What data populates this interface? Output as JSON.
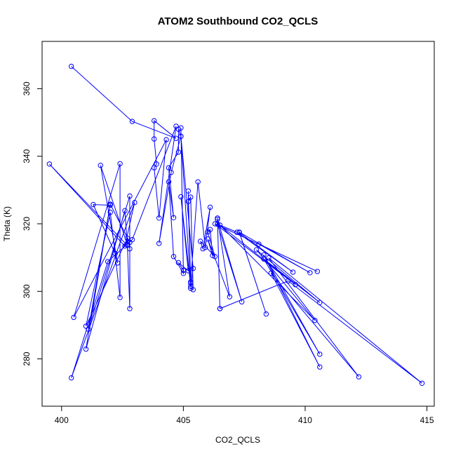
{
  "chart_data": {
    "type": "scatter",
    "title": "ATOM2 Southbound CO2_QCLS",
    "xlabel": "CO2_QCLS",
    "ylabel": "Theta (K)",
    "xlim": [
      399.2,
      415.3
    ],
    "ylim": [
      266,
      374
    ],
    "x_ticks": [
      400,
      405,
      410,
      415
    ],
    "y_ticks": [
      280,
      300,
      320,
      340,
      360
    ],
    "grid": false,
    "marker": "open-circle",
    "connected": true,
    "color": "#0000ff",
    "series": [
      {
        "points": [
          [
            400.4,
            366.6
          ],
          [
            402.9,
            350.3
          ],
          [
            404.7,
            345.3
          ],
          [
            403.8,
            350.5
          ],
          [
            403.8,
            345.1
          ],
          [
            403.9,
            337.7
          ],
          [
            403.8,
            336.6
          ],
          [
            404.0,
            321.7
          ],
          [
            404.3,
            344.9
          ],
          [
            400.5,
            292.3
          ],
          [
            402.4,
            337.8
          ],
          [
            402.4,
            298.2
          ],
          [
            402.0,
            323.4
          ],
          [
            401.0,
            289.7
          ],
          [
            402.7,
            315.7
          ],
          [
            402.8,
            312.6
          ],
          [
            402.8,
            328.2
          ],
          [
            401.1,
            288.8
          ],
          [
            402.0,
            325.8
          ],
          [
            402.0,
            325.5
          ],
          [
            401.3,
            325.7
          ],
          [
            402.2,
            311.2
          ],
          [
            402.3,
            308.4
          ],
          [
            401.6,
            337.3
          ],
          [
            402.7,
            313.9
          ],
          [
            402.8,
            294.9
          ],
          [
            402.8,
            314.5
          ],
          [
            402.0,
            325.8
          ],
          [
            401.0,
            282.9
          ],
          [
            402.6,
            323.9
          ],
          [
            402.7,
            313.6
          ],
          [
            399.5,
            337.7
          ],
          [
            402.6,
            313.4
          ],
          [
            403.0,
            326.3
          ],
          [
            400.4,
            274.4
          ],
          [
            401.9,
            308.8
          ],
          [
            402.9,
            315.3
          ],
          [
            404.7,
            348.9
          ],
          [
            404.0,
            314.2
          ],
          [
            404.5,
            335.2
          ],
          [
            404.9,
            345.9
          ],
          [
            404.8,
            348.0
          ],
          [
            404.8,
            341.2
          ],
          [
            404.4,
            336.6
          ],
          [
            404.6,
            321.8
          ],
          [
            404.4,
            332.4
          ],
          [
            404.6,
            310.3
          ],
          [
            405.0,
            305.3
          ],
          [
            404.9,
            348.4
          ],
          [
            405.0,
            306.2
          ],
          [
            404.8,
            308.5
          ],
          [
            405.2,
            306.1
          ],
          [
            404.9,
            328.0
          ],
          [
            405.3,
            301.5
          ],
          [
            404.9,
            345.9
          ],
          [
            405.4,
            306.8
          ],
          [
            405.3,
            300.9
          ],
          [
            405.4,
            300.5
          ],
          [
            405.3,
            327.9
          ],
          [
            405.2,
            326.6
          ],
          [
            405.3,
            302.4
          ],
          [
            405.2,
            329.7
          ],
          [
            405.3,
            302.8
          ],
          [
            405.6,
            332.4
          ],
          [
            405.9,
            313.0
          ],
          [
            406.1,
            324.9
          ],
          [
            405.8,
            312.6
          ],
          [
            405.7,
            314.8
          ],
          [
            406.3,
            310.3
          ],
          [
            406.0,
            317.6
          ],
          [
            406.1,
            318.3
          ],
          [
            406.2,
            310.6
          ],
          [
            406.0,
            315.5
          ],
          [
            406.9,
            298.4
          ],
          [
            406.4,
            321.7
          ],
          [
            406.5,
            294.9
          ],
          [
            406.4,
            321.3
          ],
          [
            407.4,
            296.9
          ],
          [
            406.4,
            319.9
          ],
          [
            407.2,
            317.5
          ],
          [
            409.5,
            305.7
          ],
          [
            407.3,
            317.4
          ],
          [
            408.4,
            293.3
          ],
          [
            407.3,
            317.5
          ],
          [
            410.2,
            305.5
          ],
          [
            408.1,
            314.0
          ],
          [
            410.5,
            305.9
          ],
          [
            406.3,
            320.0
          ],
          [
            409.6,
            302.0
          ],
          [
            406.5,
            319.6
          ],
          [
            410.4,
            291.4
          ],
          [
            408.0,
            312.3
          ],
          [
            410.6,
            296.7
          ],
          [
            408.3,
            309.6
          ],
          [
            410.6,
            281.4
          ],
          [
            408.3,
            310.8
          ],
          [
            410.6,
            277.6
          ],
          [
            408.6,
            305.4
          ],
          [
            412.2,
            274.7
          ],
          [
            408.5,
            309.9
          ],
          [
            414.8,
            272.8
          ],
          [
            409.3,
            303.1
          ],
          [
            406.5,
            294.9
          ]
        ]
      }
    ]
  }
}
